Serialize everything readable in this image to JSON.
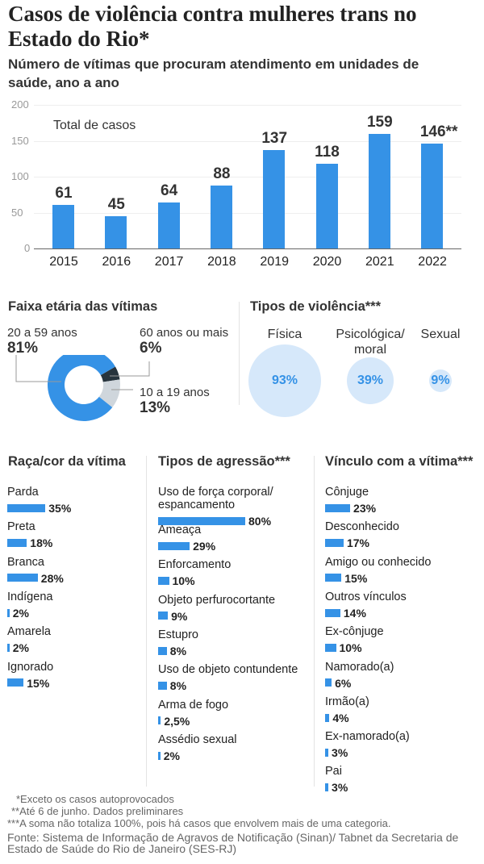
{
  "title": "Casos de violência contra mulheres trans no Estado do Rio*",
  "subtitle": "Número de vítimas que procuram atendimento em unidades de saúde, ano a ano",
  "chart_data": [
    {
      "type": "bar",
      "title": "",
      "legend": "Total de casos",
      "categories": [
        "2015",
        "2016",
        "2017",
        "2018",
        "2019",
        "2020",
        "2021",
        "2022"
      ],
      "values": [
        61,
        45,
        64,
        88,
        137,
        118,
        159,
        146
      ],
      "value_labels": [
        "61",
        "45",
        "64",
        "88",
        "137",
        "118",
        "159",
        "146**"
      ],
      "yticks": [
        "0",
        "50",
        "100",
        "150",
        "200"
      ],
      "ylim": [
        0,
        200
      ],
      "grid": true,
      "color": "#3592e6"
    },
    {
      "type": "pie",
      "title": "Faixa etária das vítimas",
      "slices": [
        {
          "label": "20 a 59 anos",
          "value": 81,
          "text": "81%",
          "color": "#3592e6"
        },
        {
          "label": "60 anos ou mais",
          "value": 6,
          "text": "6%",
          "color": "#27343d"
        },
        {
          "label": "10 a 19 anos",
          "value": 13,
          "text": "13%",
          "color": "#cfd6dc"
        }
      ]
    },
    {
      "type": "bubble",
      "title": "Tipos de violência***",
      "items": [
        {
          "label": "Física",
          "value": 93,
          "text": "93%"
        },
        {
          "label": "Psicológica/ moral",
          "value": 39,
          "text": "39%"
        },
        {
          "label": "Sexual",
          "value": 9,
          "text": "9%"
        }
      ],
      "color": "#d6e8fa"
    },
    {
      "type": "bar",
      "orientation": "horizontal",
      "title": "Raça/cor da vítima",
      "items": [
        {
          "label": "Parda",
          "value": 35,
          "text": "35%"
        },
        {
          "label": "Preta",
          "value": 18,
          "text": "18%"
        },
        {
          "label": "Branca",
          "value": 28,
          "text": "28%"
        },
        {
          "label": "Indígena",
          "value": 2,
          "text": "2%"
        },
        {
          "label": "Amarela",
          "value": 2,
          "text": "2%"
        },
        {
          "label": "Ignorado",
          "value": 15,
          "text": "15%"
        }
      ]
    },
    {
      "type": "bar",
      "orientation": "horizontal",
      "title": "Tipos de agressão***",
      "items": [
        {
          "label": "Uso de força corporal/ espancamento",
          "value": 80,
          "text": "80%"
        },
        {
          "label": "Ameaça",
          "value": 29,
          "text": "29%"
        },
        {
          "label": "Enforcamento",
          "value": 10,
          "text": "10%"
        },
        {
          "label": "Objeto perfurocortante",
          "value": 9,
          "text": "9%"
        },
        {
          "label": "Estupro",
          "value": 8,
          "text": "8%"
        },
        {
          "label": "Uso de objeto contundente",
          "value": 8,
          "text": "8%"
        },
        {
          "label": "Arma de fogo",
          "value": 2.5,
          "text": "2,5%"
        },
        {
          "label": "Assédio sexual",
          "value": 2,
          "text": "2%"
        }
      ]
    },
    {
      "type": "bar",
      "orientation": "horizontal",
      "title": "Vínculo com a vítima***",
      "items": [
        {
          "label": "Cônjuge",
          "value": 23,
          "text": "23%"
        },
        {
          "label": "Desconhecido",
          "value": 17,
          "text": "17%"
        },
        {
          "label": "Amigo ou conhecido",
          "value": 15,
          "text": "15%"
        },
        {
          "label": "Outros vínculos",
          "value": 14,
          "text": "14%"
        },
        {
          "label": "Ex-cônjuge",
          "value": 10,
          "text": "10%"
        },
        {
          "label": "Namorado(a)",
          "value": 6,
          "text": "6%"
        },
        {
          "label": "Irmão(a)",
          "value": 4,
          "text": "4%"
        },
        {
          "label": "Ex-namorado(a)",
          "value": 3,
          "text": "3%"
        },
        {
          "label": "Pai",
          "value": 3,
          "text": "3%"
        }
      ]
    }
  ],
  "footnotes": [
    "*Exceto os casos autoprovocados",
    "**Até 6 de junho. Dados preliminares",
    "***A soma não totaliza 100%, pois há casos que envolvem mais de uma categoria."
  ],
  "source": [
    "Fonte: Sistema de Informação de Agravos de Notificação (Sinan)/ Tabnet da Secretaria de",
    "Estado de Saúde do Rio de Janeiro (SES-RJ)"
  ]
}
